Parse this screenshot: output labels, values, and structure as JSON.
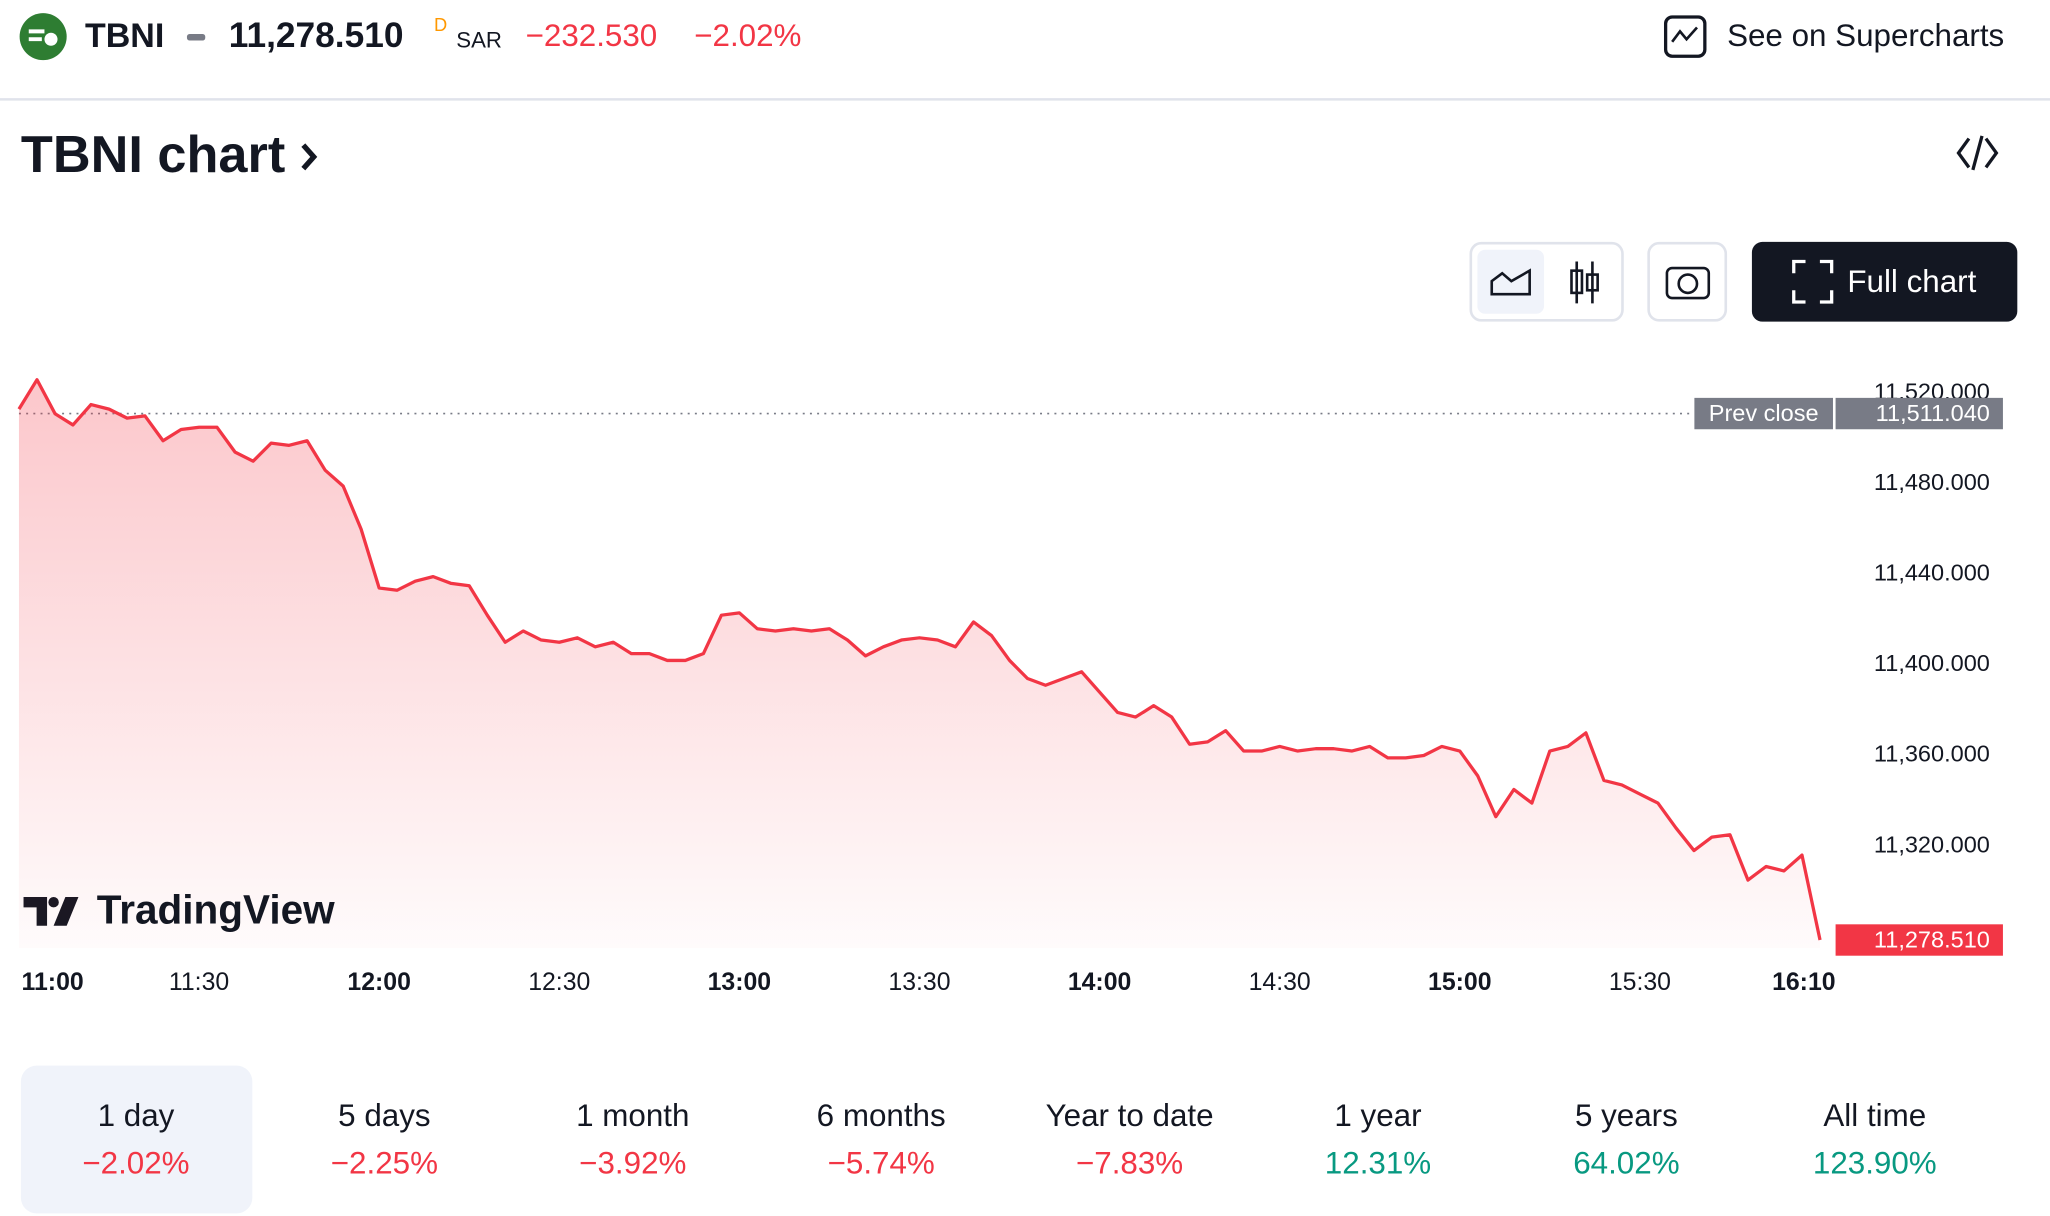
{
  "header": {
    "symbol": "TBNI",
    "price": "11,278.510",
    "flag": "D",
    "currency": "SAR",
    "change": "−232.530",
    "change_pct": "−2.02%",
    "link": "See on Supercharts"
  },
  "title": "TBNI chart",
  "full_chart": "Full chart",
  "brand": "TradingView",
  "chart_data": {
    "type": "line",
    "x": [
      "11:00",
      "11:03",
      "11:06",
      "11:09",
      "11:12",
      "11:15",
      "11:18",
      "11:21",
      "11:24",
      "11:27",
      "11:30",
      "11:33",
      "11:36",
      "11:39",
      "11:42",
      "11:45",
      "11:48",
      "11:51",
      "11:54",
      "11:57",
      "12:00",
      "12:03",
      "12:06",
      "12:09",
      "12:12",
      "12:15",
      "12:18",
      "12:21",
      "12:24",
      "12:27",
      "12:30",
      "12:33",
      "12:36",
      "12:39",
      "12:42",
      "12:45",
      "12:48",
      "12:51",
      "12:54",
      "12:57",
      "13:00",
      "13:03",
      "13:06",
      "13:09",
      "13:12",
      "13:15",
      "13:18",
      "13:21",
      "13:24",
      "13:27",
      "13:30",
      "13:33",
      "13:36",
      "13:39",
      "13:42",
      "13:45",
      "13:48",
      "13:51",
      "13:54",
      "13:57",
      "14:00",
      "14:03",
      "14:06",
      "14:09",
      "14:12",
      "14:15",
      "14:18",
      "14:21",
      "14:24",
      "14:27",
      "14:30",
      "14:33",
      "14:36",
      "14:39",
      "14:42",
      "14:45",
      "14:48",
      "14:51",
      "14:54",
      "14:57",
      "15:00",
      "15:03",
      "15:06",
      "15:09",
      "15:12",
      "15:15",
      "15:18",
      "15:21",
      "15:24",
      "15:27",
      "15:30",
      "15:33",
      "15:36",
      "15:39",
      "15:42",
      "15:45",
      "15:48",
      "15:51",
      "15:54",
      "15:57",
      "16:00"
    ],
    "series": [
      {
        "name": "TBNI",
        "color": "#f23645",
        "values": [
          11513,
          11526,
          11511,
          11506,
          11515,
          11513,
          11509,
          11510,
          11499,
          11504,
          11505,
          11505,
          11494,
          11490,
          11498,
          11497,
          11499,
          11486,
          11479,
          11460,
          11434,
          11433,
          11437,
          11439,
          11436,
          11435,
          11422,
          11410,
          11415,
          11411,
          11410,
          11412,
          11408,
          11410,
          11405,
          11405,
          11402,
          11402,
          11405,
          11422,
          11423,
          11416,
          11415,
          11416,
          11415,
          11416,
          11411,
          11404,
          11408,
          11411,
          11412,
          11411,
          11408,
          11419,
          11413,
          11402,
          11394,
          11391,
          11394,
          11397,
          11388,
          11379,
          11377,
          11382,
          11377,
          11365,
          11366,
          11371,
          11362,
          11362,
          11364,
          11362,
          11363,
          11363,
          11362,
          11364,
          11359,
          11359,
          11360,
          11364,
          11362,
          11351,
          11333,
          11345,
          11339,
          11362,
          11364,
          11370,
          11349,
          11347,
          11343,
          11339,
          11328,
          11318,
          11324,
          11325,
          11305,
          11311,
          11309,
          11316,
          11278.51
        ]
      }
    ],
    "xlim": [
      "11:00",
      "16:10"
    ],
    "xticks": [
      "11:00",
      "11:30",
      "12:00",
      "12:30",
      "13:00",
      "13:30",
      "14:00",
      "14:30",
      "15:00",
      "15:30",
      "16:10"
    ],
    "ylim": [
      11275,
      11532
    ],
    "yticks": [
      {
        "value": 11320,
        "label": "11,320.000"
      },
      {
        "value": 11360,
        "label": "11,360.000"
      },
      {
        "value": 11400,
        "label": "11,400.000"
      },
      {
        "value": 11440,
        "label": "11,440.000"
      },
      {
        "value": 11480,
        "label": "11,480.000"
      },
      {
        "value": 11520,
        "label": "11,520.000"
      }
    ],
    "prev_close": {
      "label": "Prev close",
      "value": 11511.04,
      "value_label": "11,511.040"
    },
    "last_price": {
      "value": 11278.51,
      "value_label": "11,278.510"
    }
  },
  "periods": [
    {
      "name": "1 day",
      "change": "−2.02%"
    },
    {
      "name": "5 days",
      "change": "−2.25%"
    },
    {
      "name": "1 month",
      "change": "−3.92%"
    },
    {
      "name": "6 months",
      "change": "−5.74%"
    },
    {
      "name": "Year to date",
      "change": "−7.83%"
    },
    {
      "name": "1 year",
      "change": "12.31%"
    },
    {
      "name": "5 years",
      "change": "64.02%"
    },
    {
      "name": "All time",
      "change": "123.90%"
    }
  ]
}
